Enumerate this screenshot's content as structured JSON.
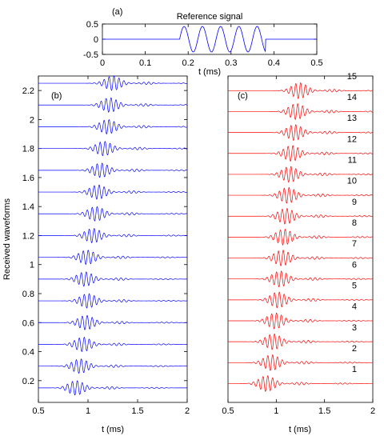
{
  "chart_data": [
    {
      "panel_label": "(a)",
      "type": "line",
      "title": "Reference signal",
      "xlabel": "t (ms)",
      "ylabel": "",
      "xlim": [
        0,
        0.5
      ],
      "ylim": [
        -0.5,
        0.5
      ],
      "xticks": [
        "0",
        "0.1",
        "0.2",
        "0.3",
        "0.4",
        "0.5"
      ],
      "yticks": [
        "0.5",
        "0",
        "-0.5"
      ],
      "color": "#0000ff",
      "series": [
        {
          "name": "",
          "kind": "tone_burst",
          "t_start": 0.18,
          "t_end": 0.38,
          "cycles": 4.7,
          "amplitude": 0.42
        }
      ]
    },
    {
      "panel_label": "(b)",
      "type": "line",
      "title": "",
      "xlabel": "t (ms)",
      "ylabel": "Received waveforms",
      "xlim": [
        0.5,
        2
      ],
      "ylim": [
        0.05,
        2.3
      ],
      "xticks": [
        "0.5",
        "1",
        "1.5",
        "2"
      ],
      "yticks": [
        "2.2",
        "2",
        "1.8",
        "1.6",
        "1.4",
        "1.2",
        "1",
        "0.8",
        "0.6",
        "0.4",
        "0.2"
      ],
      "color": "#0000ff",
      "trace_start": 0.5,
      "trace_end": 2.0,
      "trace_amplitude": 0.05,
      "carrier_period_ms": 0.05,
      "traces": [
        {
          "offset": 0.15,
          "center": 0.88
        },
        {
          "offset": 0.3,
          "center": 0.92
        },
        {
          "offset": 0.45,
          "center": 0.95
        },
        {
          "offset": 0.6,
          "center": 0.98
        },
        {
          "offset": 0.75,
          "center": 1.0
        },
        {
          "offset": 0.9,
          "center": 0.97
        },
        {
          "offset": 1.05,
          "center": 0.99
        },
        {
          "offset": 1.2,
          "center": 1.05
        },
        {
          "offset": 1.35,
          "center": 1.08
        },
        {
          "offset": 1.5,
          "center": 1.1
        },
        {
          "offset": 1.65,
          "center": 1.13
        },
        {
          "offset": 1.8,
          "center": 1.16
        },
        {
          "offset": 1.95,
          "center": 1.2
        },
        {
          "offset": 2.1,
          "center": 1.22
        },
        {
          "offset": 2.25,
          "center": 1.25
        }
      ]
    },
    {
      "panel_label": "(c)",
      "type": "line",
      "title": "",
      "xlabel": "t (ms)",
      "ylabel": "",
      "xlim": [
        0.5,
        2
      ],
      "ylim": [
        0.1,
        15.7
      ],
      "xticks": [
        "0.5",
        "1",
        "1.5",
        "2"
      ],
      "yticks": [],
      "color": "#ff0000",
      "trace_start": 0.5,
      "trace_end": 2.0,
      "trace_amplitude": 0.38,
      "carrier_period_ms": 0.05,
      "traces": [
        {
          "label": "1",
          "offset": 1,
          "center": 0.9
        },
        {
          "label": "2",
          "offset": 2,
          "center": 0.95
        },
        {
          "label": "3",
          "offset": 3,
          "center": 0.97
        },
        {
          "label": "4",
          "offset": 4,
          "center": 0.99
        },
        {
          "label": "5",
          "offset": 5,
          "center": 1.02
        },
        {
          "label": "6",
          "offset": 6,
          "center": 1.04
        },
        {
          "label": "7",
          "offset": 7,
          "center": 1.06
        },
        {
          "label": "8",
          "offset": 8,
          "center": 1.08
        },
        {
          "label": "9",
          "offset": 9,
          "center": 1.1
        },
        {
          "label": "10",
          "offset": 10,
          "center": 1.12
        },
        {
          "label": "11",
          "offset": 11,
          "center": 1.14
        },
        {
          "label": "12",
          "offset": 12,
          "center": 1.16
        },
        {
          "label": "13",
          "offset": 13,
          "center": 1.19
        },
        {
          "label": "14",
          "offset": 14,
          "center": 1.21
        },
        {
          "label": "15",
          "offset": 15,
          "center": 1.24
        }
      ]
    }
  ]
}
